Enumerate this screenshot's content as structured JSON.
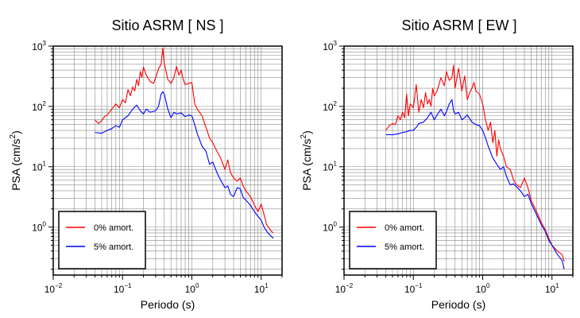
{
  "chart_data": [
    {
      "type": "line",
      "title": "Sitio ASRM [ NS ]",
      "xlabel": "Periodo (s)",
      "ylabel_main": "PSA (cm/s",
      "ylabel_sup": "2",
      "ylabel_close": ")",
      "xscale": "log",
      "yscale": "log",
      "xlim": [
        0.01,
        20
      ],
      "ylim": [
        0.16,
        1000
      ],
      "x_ticks": [
        {
          "value": 0.01,
          "base": "10",
          "exp": "−2"
        },
        {
          "value": 0.1,
          "base": "10",
          "exp": "−1"
        },
        {
          "value": 1,
          "base": "10",
          "exp": "0"
        },
        {
          "value": 10,
          "base": "10",
          "exp": "1"
        }
      ],
      "y_ticks": [
        {
          "value": 1,
          "base": "10",
          "exp": "0"
        },
        {
          "value": 10,
          "base": "10",
          "exp": "1"
        },
        {
          "value": 100,
          "base": "10",
          "exp": "2"
        },
        {
          "value": 1000,
          "base": "10",
          "exp": "3"
        }
      ],
      "grid": true,
      "legend_position": "bottom-left",
      "series": [
        {
          "name": "0% amort.",
          "color": "#ff0000",
          "points": [
            [
              0.04,
              60
            ],
            [
              0.045,
              52
            ],
            [
              0.05,
              58
            ],
            [
              0.055,
              68
            ],
            [
              0.06,
              72
            ],
            [
              0.07,
              90
            ],
            [
              0.08,
              110
            ],
            [
              0.09,
              95
            ],
            [
              0.1,
              130
            ],
            [
              0.11,
              115
            ],
            [
              0.12,
              190
            ],
            [
              0.13,
              150
            ],
            [
              0.14,
              210
            ],
            [
              0.15,
              180
            ],
            [
              0.16,
              280
            ],
            [
              0.17,
              220
            ],
            [
              0.18,
              380
            ],
            [
              0.19,
              300
            ],
            [
              0.2,
              450
            ],
            [
              0.22,
              330
            ],
            [
              0.25,
              260
            ],
            [
              0.28,
              240
            ],
            [
              0.3,
              300
            ],
            [
              0.33,
              420
            ],
            [
              0.36,
              500
            ],
            [
              0.38,
              930
            ],
            [
              0.4,
              520
            ],
            [
              0.45,
              280
            ],
            [
              0.5,
              240
            ],
            [
              0.55,
              300
            ],
            [
              0.6,
              460
            ],
            [
              0.65,
              330
            ],
            [
              0.7,
              400
            ],
            [
              0.75,
              280
            ],
            [
              0.8,
              230
            ],
            [
              0.9,
              240
            ],
            [
              1.0,
              250
            ],
            [
              1.1,
              110
            ],
            [
              1.2,
              90
            ],
            [
              1.4,
              70
            ],
            [
              1.6,
              45
            ],
            [
              1.8,
              30
            ],
            [
              2.0,
              25
            ],
            [
              2.3,
              18
            ],
            [
              2.6,
              14
            ],
            [
              3.0,
              9
            ],
            [
              3.3,
              13
            ],
            [
              3.6,
              8
            ],
            [
              4.0,
              6.5
            ],
            [
              4.5,
              5.8
            ],
            [
              5.0,
              6.5
            ],
            [
              5.5,
              4.8
            ],
            [
              6.0,
              4
            ],
            [
              7.0,
              3.2
            ],
            [
              8.0,
              2.3
            ],
            [
              9.0,
              1.8
            ],
            [
              10,
              2.4
            ],
            [
              11,
              1.6
            ],
            [
              12,
              1.1
            ],
            [
              14,
              0.85
            ],
            [
              15,
              0.8
            ]
          ]
        },
        {
          "name": "5% amort.",
          "color": "#0000ff",
          "points": [
            [
              0.04,
              37
            ],
            [
              0.05,
              36
            ],
            [
              0.06,
              40
            ],
            [
              0.07,
              43
            ],
            [
              0.08,
              48
            ],
            [
              0.09,
              45
            ],
            [
              0.1,
              60
            ],
            [
              0.12,
              70
            ],
            [
              0.14,
              90
            ],
            [
              0.16,
              105
            ],
            [
              0.18,
              85
            ],
            [
              0.2,
              75
            ],
            [
              0.22,
              90
            ],
            [
              0.25,
              80
            ],
            [
              0.3,
              85
            ],
            [
              0.33,
              100
            ],
            [
              0.36,
              160
            ],
            [
              0.38,
              175
            ],
            [
              0.4,
              160
            ],
            [
              0.45,
              90
            ],
            [
              0.5,
              65
            ],
            [
              0.55,
              80
            ],
            [
              0.6,
              75
            ],
            [
              0.7,
              78
            ],
            [
              0.8,
              68
            ],
            [
              0.9,
              72
            ],
            [
              1.0,
              70
            ],
            [
              1.1,
              50
            ],
            [
              1.2,
              35
            ],
            [
              1.4,
              22
            ],
            [
              1.6,
              18
            ],
            [
              1.8,
              11
            ],
            [
              2.0,
              12
            ],
            [
              2.3,
              8
            ],
            [
              2.6,
              6
            ],
            [
              3.0,
              4.5
            ],
            [
              3.3,
              4.8
            ],
            [
              3.6,
              3.5
            ],
            [
              4.0,
              3.2
            ],
            [
              4.5,
              4.5
            ],
            [
              5.0,
              4.3
            ],
            [
              5.5,
              3.1
            ],
            [
              6.0,
              2.8
            ],
            [
              7.0,
              2.3
            ],
            [
              8.0,
              1.8
            ],
            [
              9.0,
              1.5
            ],
            [
              10,
              1.3
            ],
            [
              11,
              1.0
            ],
            [
              12,
              0.85
            ],
            [
              14,
              0.7
            ],
            [
              15,
              0.65
            ]
          ]
        }
      ]
    },
    {
      "type": "line",
      "title": "Sitio ASRM [ EW ]",
      "xlabel": "Periodo (s)",
      "ylabel_main": "PSA (cm/s",
      "ylabel_sup": "2",
      "ylabel_close": ")",
      "xscale": "log",
      "yscale": "log",
      "xlim": [
        0.01,
        20
      ],
      "ylim": [
        0.16,
        1000
      ],
      "x_ticks": [
        {
          "value": 0.01,
          "base": "10",
          "exp": "−2"
        },
        {
          "value": 0.1,
          "base": "10",
          "exp": "−1"
        },
        {
          "value": 1,
          "base": "10",
          "exp": "0"
        },
        {
          "value": 10,
          "base": "10",
          "exp": "1"
        }
      ],
      "y_ticks": [
        {
          "value": 1,
          "base": "10",
          "exp": "0"
        },
        {
          "value": 10,
          "base": "10",
          "exp": "1"
        },
        {
          "value": 100,
          "base": "10",
          "exp": "2"
        },
        {
          "value": 1000,
          "base": "10",
          "exp": "3"
        }
      ],
      "grid": true,
      "legend_position": "bottom-left",
      "series": [
        {
          "name": "0% amort.",
          "color": "#ff0000",
          "points": [
            [
              0.04,
              40
            ],
            [
              0.045,
              48
            ],
            [
              0.05,
              52
            ],
            [
              0.055,
              50
            ],
            [
              0.06,
              70
            ],
            [
              0.065,
              60
            ],
            [
              0.07,
              80
            ],
            [
              0.075,
              65
            ],
            [
              0.08,
              160
            ],
            [
              0.085,
              70
            ],
            [
              0.09,
              110
            ],
            [
              0.1,
              95
            ],
            [
              0.11,
              230
            ],
            [
              0.12,
              80
            ],
            [
              0.13,
              130
            ],
            [
              0.14,
              95
            ],
            [
              0.15,
              170
            ],
            [
              0.16,
              110
            ],
            [
              0.17,
              130
            ],
            [
              0.18,
              100
            ],
            [
              0.19,
              200
            ],
            [
              0.2,
              150
            ],
            [
              0.22,
              180
            ],
            [
              0.25,
              300
            ],
            [
              0.28,
              220
            ],
            [
              0.3,
              380
            ],
            [
              0.33,
              270
            ],
            [
              0.36,
              300
            ],
            [
              0.38,
              480
            ],
            [
              0.4,
              200
            ],
            [
              0.45,
              430
            ],
            [
              0.5,
              180
            ],
            [
              0.55,
              320
            ],
            [
              0.6,
              130
            ],
            [
              0.65,
              170
            ],
            [
              0.7,
              200
            ],
            [
              0.75,
              250
            ],
            [
              0.8,
              180
            ],
            [
              0.9,
              160
            ],
            [
              1.0,
              110
            ],
            [
              1.1,
              60
            ],
            [
              1.2,
              40
            ],
            [
              1.3,
              55
            ],
            [
              1.4,
              25
            ],
            [
              1.5,
              40
            ],
            [
              1.6,
              15
            ],
            [
              1.7,
              28
            ],
            [
              1.8,
              20
            ],
            [
              2.0,
              15
            ],
            [
              2.2,
              10
            ],
            [
              2.5,
              9
            ],
            [
              2.8,
              6
            ],
            [
              3.0,
              5.2
            ],
            [
              3.5,
              4.5
            ],
            [
              4.0,
              6.5
            ],
            [
              4.5,
              4.5
            ],
            [
              5.0,
              2.8
            ],
            [
              6.0,
              1.8
            ],
            [
              7.0,
              1.2
            ],
            [
              8.0,
              0.9
            ],
            [
              9.0,
              0.65
            ],
            [
              10,
              0.5
            ],
            [
              12,
              0.4
            ],
            [
              14,
              0.35
            ],
            [
              15,
              0.27
            ]
          ]
        },
        {
          "name": "5% amort.",
          "color": "#0000ff",
          "points": [
            [
              0.04,
              34
            ],
            [
              0.05,
              34
            ],
            [
              0.06,
              35
            ],
            [
              0.07,
              37
            ],
            [
              0.08,
              38
            ],
            [
              0.09,
              40
            ],
            [
              0.1,
              40
            ],
            [
              0.11,
              45
            ],
            [
              0.12,
              52
            ],
            [
              0.14,
              55
            ],
            [
              0.16,
              65
            ],
            [
              0.18,
              80
            ],
            [
              0.2,
              60
            ],
            [
              0.22,
              72
            ],
            [
              0.25,
              90
            ],
            [
              0.28,
              70
            ],
            [
              0.3,
              82
            ],
            [
              0.33,
              110
            ],
            [
              0.36,
              130
            ],
            [
              0.38,
              85
            ],
            [
              0.4,
              75
            ],
            [
              0.45,
              80
            ],
            [
              0.5,
              60
            ],
            [
              0.55,
              65
            ],
            [
              0.6,
              72
            ],
            [
              0.7,
              55
            ],
            [
              0.8,
              50
            ],
            [
              0.9,
              48
            ],
            [
              1.0,
              40
            ],
            [
              1.1,
              30
            ],
            [
              1.2,
              22
            ],
            [
              1.4,
              14
            ],
            [
              1.6,
              11
            ],
            [
              1.8,
              9
            ],
            [
              2.0,
              10
            ],
            [
              2.2,
              7
            ],
            [
              2.5,
              5
            ],
            [
              2.8,
              5.2
            ],
            [
              3.0,
              4.8
            ],
            [
              3.5,
              4
            ],
            [
              4.0,
              3.2
            ],
            [
              4.5,
              3.5
            ],
            [
              5.0,
              2.5
            ],
            [
              6.0,
              1.6
            ],
            [
              7.0,
              1.1
            ],
            [
              8.0,
              0.85
            ],
            [
              9.0,
              0.6
            ],
            [
              10,
              0.5
            ],
            [
              12,
              0.35
            ],
            [
              14,
              0.28
            ],
            [
              15,
              0.2
            ]
          ]
        }
      ]
    }
  ]
}
